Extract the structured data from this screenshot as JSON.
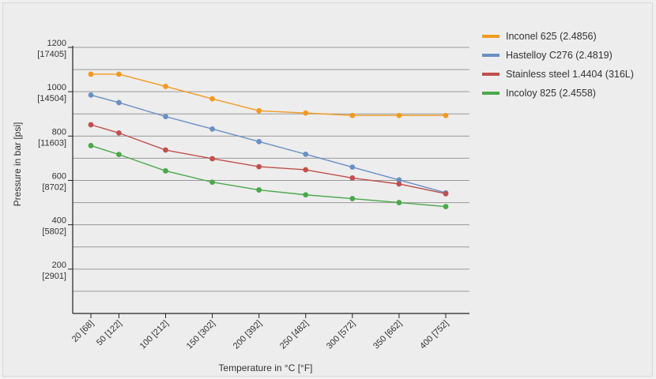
{
  "chart_data": {
    "type": "line",
    "title": "",
    "xlabel": "Temperature in °C [°F]",
    "ylabel": "Pressure in bar [psi]",
    "x": [
      20,
      50,
      100,
      150,
      200,
      250,
      300,
      350,
      400
    ],
    "x_tick_labels": [
      "20 [68]",
      "50 [122]",
      "100 [212]",
      "150 [302]",
      "200 [392]",
      "250 [482]",
      "300 [572]",
      "350 [662]",
      "400 [752]"
    ],
    "ylim": [
      0,
      1200
    ],
    "y_ticks": [
      {
        "value": 200,
        "bar": "200",
        "psi": "[2901]"
      },
      {
        "value": 400,
        "bar": "400",
        "psi": "[5802]"
      },
      {
        "value": 600,
        "bar": "600",
        "psi": "[8702]"
      },
      {
        "value": 800,
        "bar": "800",
        "psi": "[11603]"
      },
      {
        "value": 1000,
        "bar": "1000",
        "psi": "[14504]"
      },
      {
        "value": 1200,
        "bar": "1200",
        "psi": "[17405]"
      }
    ],
    "grid": true,
    "legend_position": "top-right",
    "series": [
      {
        "name": "Inconel 625 (2.4856)",
        "color": "#f39a1e",
        "values": [
          1079,
          1079,
          1024,
          968,
          914,
          904,
          893,
          893,
          893
        ]
      },
      {
        "name": "Hastelloy C276 (2.4819)",
        "color": "#6a8fc4",
        "values": [
          985,
          951,
          888,
          832,
          775,
          718,
          660,
          602,
          544
        ]
      },
      {
        "name": "Stainless steel 1.4404 (316L)",
        "color": "#c0504d",
        "values": [
          851,
          814,
          737,
          698,
          662,
          648,
          611,
          584,
          540
        ]
      },
      {
        "name": "Incoloy 825 (2.4558)",
        "color": "#4aa84a",
        "values": [
          757,
          717,
          643,
          592,
          557,
          535,
          518,
          500,
          482
        ]
      }
    ]
  }
}
